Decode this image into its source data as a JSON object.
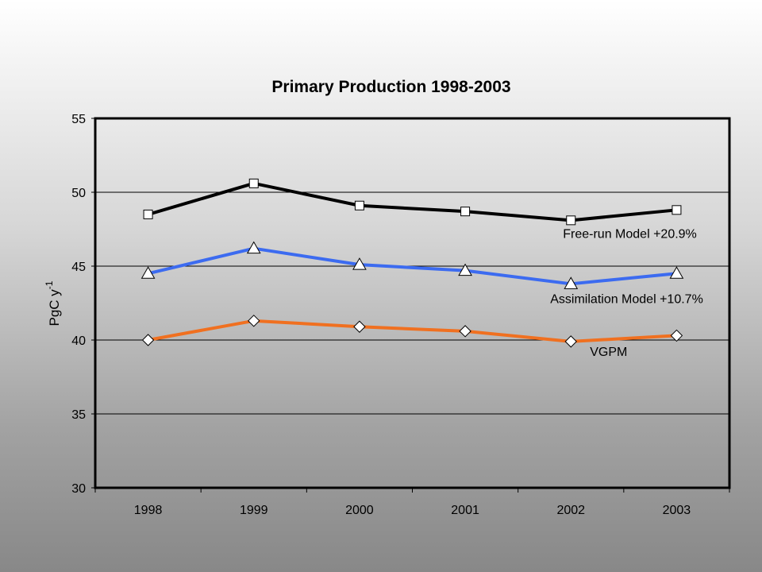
{
  "chart_data": {
    "type": "line",
    "title": "Primary Production 1998-2003",
    "xlabel": "",
    "ylabel": "PgC y",
    "ylabel_superscript": "-1",
    "categories": [
      "1998",
      "1999",
      "2000",
      "2001",
      "2002",
      "2003"
    ],
    "ylim": [
      30,
      55
    ],
    "yticks": [
      "30",
      "35",
      "40",
      "45",
      "50",
      "55"
    ],
    "grid": "horizontal",
    "series": [
      {
        "name": "Free-run Model +20.9%",
        "values": [
          48.5,
          50.6,
          49.1,
          48.7,
          48.1,
          48.8
        ],
        "color": "#000000",
        "marker": "square"
      },
      {
        "name": "Assimilation Model +10.7%",
        "values": [
          44.5,
          46.2,
          45.1,
          44.7,
          43.8,
          44.5
        ],
        "color": "#3c6bf0",
        "marker": "triangle"
      },
      {
        "name": "VGPM",
        "values": [
          40.0,
          41.3,
          40.9,
          40.6,
          39.9,
          40.3
        ],
        "color": "#f07020",
        "marker": "diamond"
      }
    ]
  }
}
